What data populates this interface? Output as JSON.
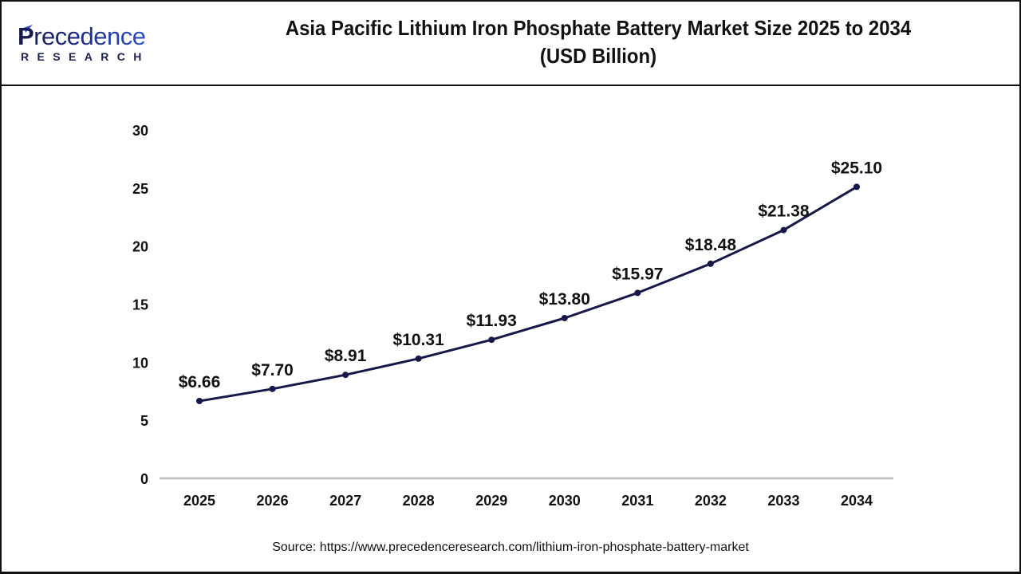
{
  "header": {
    "logo": {
      "wordmark": "Precedence",
      "subtitle": "RESEARCH",
      "icon": "paper-plane-logo-icon"
    },
    "title_line1": "Asia Pacific Lithium Iron Phosphate Battery Market Size 2025 to 2034",
    "title_line2": "(USD Billion)"
  },
  "footer": {
    "source": "Source: https://www.precedenceresearch.com/lithium-iron-phosphate-battery-market"
  },
  "colors": {
    "line": "#16184a",
    "axis": "#bdbdbd",
    "text": "#111111",
    "brand_dark": "#17184a",
    "brand_blue": "#2c4fd0"
  },
  "chart_data": {
    "type": "line",
    "title": "Asia Pacific Lithium Iron Phosphate Battery Market Size 2025 to 2034 (USD Billion)",
    "xlabel": "",
    "ylabel": "",
    "categories": [
      "2025",
      "2026",
      "2027",
      "2028",
      "2029",
      "2030",
      "2031",
      "2032",
      "2033",
      "2034"
    ],
    "values": [
      6.66,
      7.7,
      8.91,
      10.31,
      11.93,
      13.8,
      15.97,
      18.48,
      21.38,
      25.1
    ],
    "data_labels": [
      "$6.66",
      "$7.70",
      "$8.91",
      "$10.31",
      "$11.93",
      "$13.80",
      "$15.97",
      "$18.48",
      "$21.38",
      "$25.10"
    ],
    "yticks": [
      0,
      5,
      10,
      15,
      20,
      25,
      30
    ],
    "ylim": [
      0,
      30
    ],
    "grid": false,
    "legend": null,
    "markers": true
  }
}
